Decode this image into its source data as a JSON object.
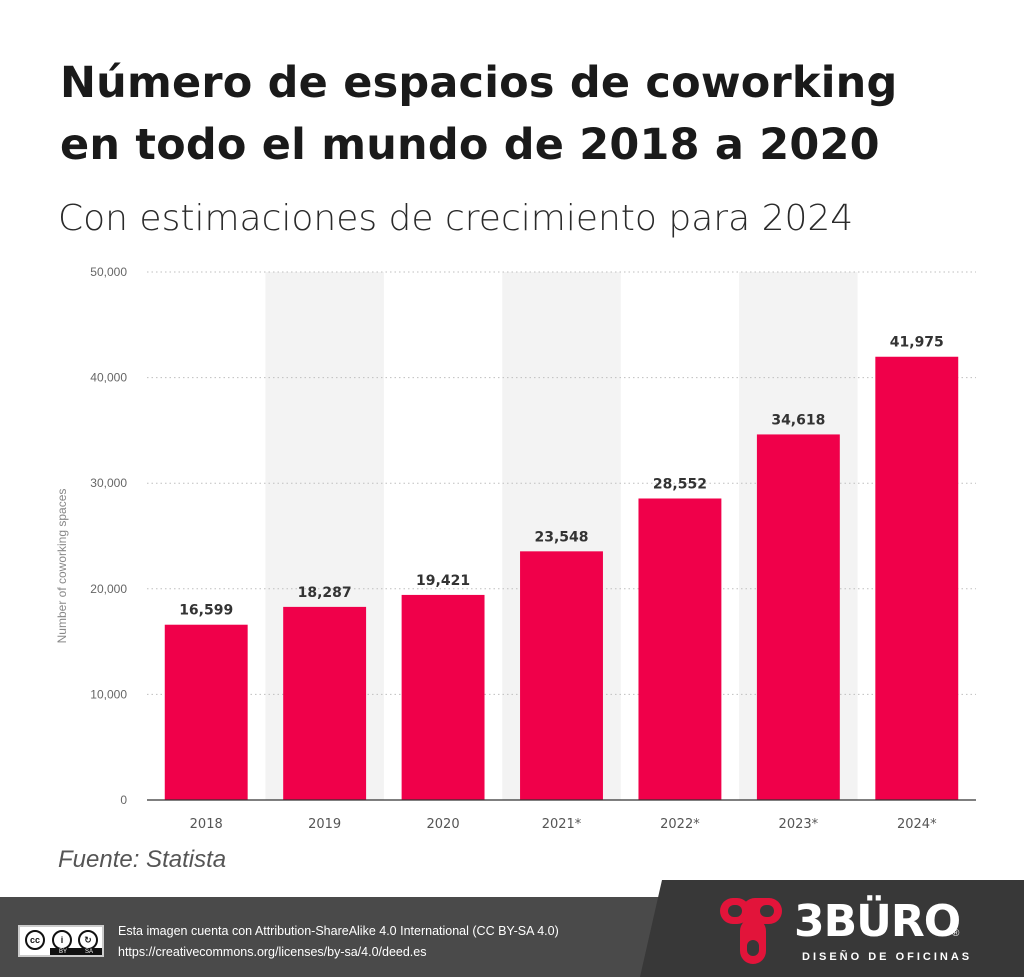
{
  "header": {
    "title_line1": "Número de espacios de coworking",
    "title_line2": "en todo el mundo de 2018 a 2020",
    "subtitle": "Con estimaciones de crecimiento para 2024"
  },
  "chart_data": {
    "type": "bar",
    "categories": [
      "2018",
      "2019",
      "2020",
      "2021*",
      "2022*",
      "2023*",
      "2024*"
    ],
    "values": [
      16599,
      18287,
      19421,
      23548,
      28552,
      34618,
      41975
    ],
    "value_labels": [
      "16,599",
      "18,287",
      "19,421",
      "23,548",
      "28,552",
      "34,618",
      "41,975"
    ],
    "ylabel": "Number of coworking spaces",
    "ylim": [
      0,
      50000
    ],
    "yticks": [
      0,
      10000,
      20000,
      30000,
      40000,
      50000
    ],
    "ytick_labels": [
      "0",
      "10,000",
      "20,000",
      "30,000",
      "40,000",
      "50,000"
    ],
    "grid": true,
    "bar_color": "#f0004a",
    "band_color": "#f3f3f3"
  },
  "source": "Fuente: Statista",
  "footer": {
    "license_line1": "Esta imagen cuenta con Attribution-ShareAlike 4.0 International (CC BY-SA 4.0)",
    "license_line2": "https://creativecommons.org/licenses/by-sa/4.0/deed.es",
    "badge_by": "BY",
    "badge_sa": "SA",
    "brand": "3BÜRO",
    "tagline": "DISEÑO DE OFICINAS",
    "reg_mark": "®"
  }
}
